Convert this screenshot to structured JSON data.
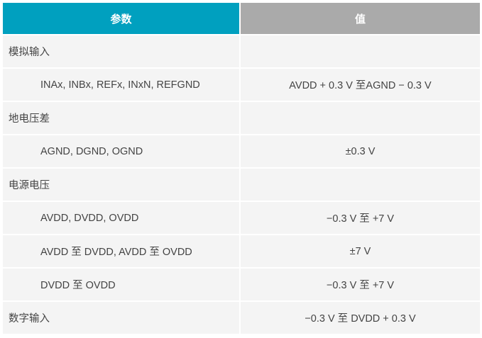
{
  "table": {
    "headers": [
      "参数",
      "值"
    ],
    "header_colors": {
      "param": "#00a0bf",
      "value": "#aaaaaa"
    },
    "rows": [
      {
        "param": "模拟输入",
        "value": "",
        "indent": false
      },
      {
        "param": "INAx, INBx, REFx, INxN, REFGND",
        "value": "AVDD + 0.3 V 至AGND − 0.3 V",
        "indent": true
      },
      {
        "param": "地电压差",
        "value": "",
        "indent": false
      },
      {
        "param": "AGND, DGND, OGND",
        "value": "±0.3 V",
        "indent": true
      },
      {
        "param": "电源电压",
        "value": "",
        "indent": false
      },
      {
        "param": "AVDD, DVDD, OVDD",
        "value": "−0.3 V 至 +7 V",
        "indent": true
      },
      {
        "param": "AVDD 至 DVDD, AVDD 至 OVDD",
        "value": "±7 V",
        "indent": true
      },
      {
        "param": "DVDD 至 OVDD",
        "value": "−0.3 V 至 +7 V",
        "indent": true
      },
      {
        "param": "数字输入",
        "value": "−0.3 V 至 DVDD + 0.3 V",
        "indent": false
      }
    ]
  }
}
